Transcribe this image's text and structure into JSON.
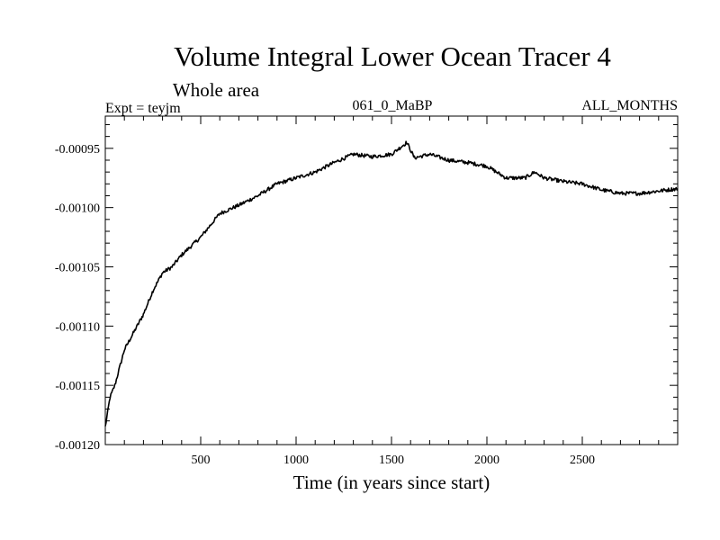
{
  "chart_data": {
    "type": "line",
    "title": "Volume Integral Lower Ocean Tracer 4",
    "subtitle": "Whole area",
    "expt_label": "Expt = teyjm",
    "run_label": "061_0_MaBP",
    "months_label": "ALL_MONTHS",
    "xlabel": "Time (in years since start)",
    "ylabel": "",
    "xlim": [
      0,
      3000
    ],
    "ylim": [
      -0.0012,
      -0.00092
    ],
    "x_ticks": [
      500,
      1000,
      1500,
      2000,
      2500
    ],
    "x_tick_labels": [
      "500",
      "1000",
      "1500",
      "2000",
      "2500"
    ],
    "y_ticks": [
      -0.00095,
      -0.001,
      -0.00105,
      -0.0011,
      -0.00115,
      -0.0012
    ],
    "y_tick_labels": [
      "-0.00095",
      "-0.00100",
      "-0.00105",
      "-0.00110",
      "-0.00115",
      "-0.00120"
    ],
    "grid": false,
    "line_color": "#000000",
    "series": [
      {
        "name": "tracer4",
        "x": [
          0,
          25,
          50,
          75,
          100,
          150,
          200,
          250,
          300,
          350,
          400,
          500,
          600,
          700,
          800,
          900,
          1000,
          1100,
          1200,
          1300,
          1400,
          1500,
          1580,
          1620,
          1700,
          1800,
          1900,
          2000,
          2100,
          2200,
          2250,
          2300,
          2400,
          2500,
          2600,
          2700,
          2800,
          2900,
          3000
        ],
        "values": [
          -0.001185,
          -0.00116,
          -0.00115,
          -0.001135,
          -0.00112,
          -0.001105,
          -0.00109,
          -0.00107,
          -0.001055,
          -0.00105,
          -0.00104,
          -0.001025,
          -0.001005,
          -0.000998,
          -0.00099,
          -0.00098,
          -0.000975,
          -0.00097,
          -0.000962,
          -0.000955,
          -0.000957,
          -0.000955,
          -0.000945,
          -0.000958,
          -0.000955,
          -0.00096,
          -0.000962,
          -0.000965,
          -0.000975,
          -0.000975,
          -0.00097,
          -0.000975,
          -0.000978,
          -0.00098,
          -0.000985,
          -0.000988,
          -0.000988,
          -0.000986,
          -0.000984
        ]
      }
    ]
  }
}
